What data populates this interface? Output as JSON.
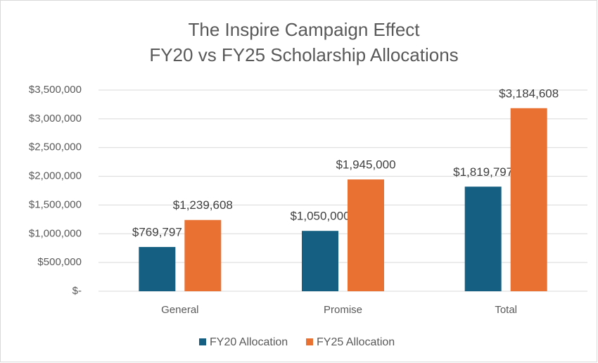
{
  "chart_data": {
    "type": "bar",
    "title": [
      "The Inspire Campaign Effect",
      "FY20 vs FY25 Scholarship Allocations"
    ],
    "categories": [
      "General",
      "Promise",
      "Total"
    ],
    "series": [
      {
        "name": "FY20 Allocation",
        "color": "#156082",
        "values": [
          769797,
          1050000,
          1819797
        ],
        "value_labels": [
          "$769,797",
          "$1,050,000",
          "$1,819,797"
        ]
      },
      {
        "name": "FY25 Allocation",
        "color": "#E97132",
        "values": [
          1239608,
          1945000,
          3184608
        ],
        "value_labels": [
          "$1,239,608",
          "$1,945,000",
          "$3,184,608"
        ]
      }
    ],
    "ylim": [
      0,
      3500000
    ],
    "yticks": [
      {
        "value": 0,
        "label": "$-"
      },
      {
        "value": 500000,
        "label": "$500,000"
      },
      {
        "value": 1000000,
        "label": "$1,000,000"
      },
      {
        "value": 1500000,
        "label": "$1,500,000"
      },
      {
        "value": 2000000,
        "label": "$2,000,000"
      },
      {
        "value": 2500000,
        "label": "$2,500,000"
      },
      {
        "value": 3000000,
        "label": "$3,000,000"
      },
      {
        "value": 3500000,
        "label": "$3,500,000"
      }
    ],
    "grid": true,
    "legend": "bottom"
  }
}
